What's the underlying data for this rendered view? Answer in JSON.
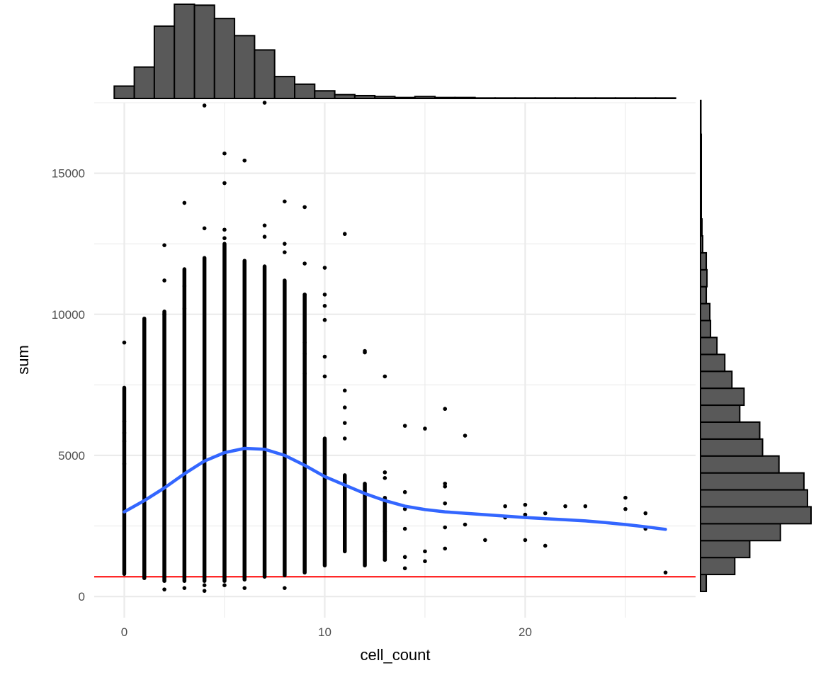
{
  "chart_data": {
    "type": "scatter",
    "title": "",
    "xlabel": "cell_count",
    "ylabel": "sum",
    "xlim": [
      -1.5,
      28.5
    ],
    "ylim": [
      -750,
      17500
    ],
    "x_ticks": [
      0,
      10,
      20
    ],
    "x_tick_labels": [
      "0",
      "10",
      "20"
    ],
    "x_minor_ticks": [
      5,
      15,
      25
    ],
    "y_ticks": [
      0,
      5000,
      10000,
      15000
    ],
    "y_tick_labels": [
      "0",
      "5000",
      "10000",
      "15000"
    ],
    "y_minor_ticks": [
      2500,
      7500,
      12500,
      17500
    ],
    "grid": true,
    "theme": "minimal",
    "colors": {
      "points": "#000000",
      "smooth_line": "#3366FF",
      "threshold_line": "#FF0000",
      "histogram_fill": "#595959",
      "histogram_stroke": "#000000",
      "grid": "#ebebeb"
    },
    "threshold": {
      "y": 700
    },
    "smooth": {
      "x": [
        0,
        1,
        2,
        3,
        4,
        5,
        6,
        7,
        8,
        9,
        10,
        11,
        12,
        13,
        14,
        15,
        16,
        17,
        18,
        19,
        20,
        21,
        22,
        23,
        24,
        25,
        26,
        27
      ],
      "y": [
        3000,
        3400,
        3850,
        4350,
        4800,
        5100,
        5250,
        5220,
        5000,
        4650,
        4250,
        3950,
        3650,
        3400,
        3200,
        3080,
        3000,
        2950,
        2900,
        2850,
        2800,
        2760,
        2720,
        2680,
        2620,
        2550,
        2470,
        2380
      ]
    },
    "strips": [
      {
        "x": 0,
        "min": 800,
        "max": 7400
      },
      {
        "x": 1,
        "min": 650,
        "max": 9850
      },
      {
        "x": 2,
        "min": 550,
        "max": 10100
      },
      {
        "x": 3,
        "min": 550,
        "max": 11600
      },
      {
        "x": 4,
        "min": 550,
        "max": 12000
      },
      {
        "x": 5,
        "min": 550,
        "max": 12500
      },
      {
        "x": 6,
        "min": 600,
        "max": 11900
      },
      {
        "x": 7,
        "min": 700,
        "max": 11700
      },
      {
        "x": 8,
        "min": 750,
        "max": 11200
      },
      {
        "x": 9,
        "min": 850,
        "max": 10700
      },
      {
        "x": 10,
        "min": 1100,
        "max": 5600
      },
      {
        "x": 11,
        "min": 1600,
        "max": 4300
      },
      {
        "x": 12,
        "min": 1100,
        "max": 4000
      },
      {
        "x": 13,
        "min": 1300,
        "max": 3500
      }
    ],
    "points": [
      [
        0,
        9000
      ],
      [
        0,
        6200
      ],
      [
        0,
        5800
      ],
      [
        0,
        5500
      ],
      [
        0,
        4700
      ],
      [
        1,
        8600
      ],
      [
        1,
        9700
      ],
      [
        2,
        12450
      ],
      [
        2,
        11200
      ],
      [
        2,
        10000
      ],
      [
        2,
        250
      ],
      [
        3,
        13950
      ],
      [
        3,
        11000
      ],
      [
        3,
        10200
      ],
      [
        3,
        300
      ],
      [
        4,
        17400
      ],
      [
        4,
        13050
      ],
      [
        4,
        200
      ],
      [
        4,
        400
      ],
      [
        5,
        15700
      ],
      [
        5,
        14650
      ],
      [
        5,
        13000
      ],
      [
        5,
        12700
      ],
      [
        5,
        400
      ],
      [
        6,
        15450
      ],
      [
        6,
        300
      ],
      [
        7,
        17500
      ],
      [
        7,
        13150
      ],
      [
        7,
        12750
      ],
      [
        8,
        14000
      ],
      [
        8,
        12500
      ],
      [
        8,
        12200
      ],
      [
        8,
        300
      ],
      [
        9,
        13800
      ],
      [
        9,
        11800
      ],
      [
        9,
        10700
      ],
      [
        9,
        9000
      ],
      [
        9,
        8600
      ],
      [
        9,
        7900
      ],
      [
        10,
        11650
      ],
      [
        10,
        10700
      ],
      [
        10,
        10300
      ],
      [
        10,
        9800
      ],
      [
        10,
        8500
      ],
      [
        10,
        7800
      ],
      [
        11,
        12850
      ],
      [
        11,
        7300
      ],
      [
        11,
        6700
      ],
      [
        11,
        6150
      ],
      [
        11,
        5600
      ],
      [
        12,
        8700
      ],
      [
        12,
        8650
      ],
      [
        13,
        7800
      ],
      [
        13,
        4400
      ],
      [
        13,
        4200
      ],
      [
        13,
        2300
      ],
      [
        13,
        1300
      ],
      [
        14,
        6050
      ],
      [
        14,
        3700
      ],
      [
        14,
        3100
      ],
      [
        14,
        2400
      ],
      [
        14,
        1400
      ],
      [
        14,
        1000
      ],
      [
        15,
        5950
      ],
      [
        15,
        1600
      ],
      [
        15,
        1250
      ],
      [
        16,
        6650
      ],
      [
        16,
        4000
      ],
      [
        16,
        3900
      ],
      [
        16,
        3300
      ],
      [
        16,
        2450
      ],
      [
        16,
        1700
      ],
      [
        17,
        5700
      ],
      [
        17,
        2550
      ],
      [
        18,
        2000
      ],
      [
        19,
        3200
      ],
      [
        19,
        2800
      ],
      [
        20,
        3250
      ],
      [
        20,
        2900
      ],
      [
        20,
        2000
      ],
      [
        21,
        2950
      ],
      [
        21,
        1800
      ],
      [
        22,
        3200
      ],
      [
        23,
        3200
      ],
      [
        25,
        3500
      ],
      [
        25,
        3100
      ],
      [
        26,
        2950
      ],
      [
        26,
        2400
      ],
      [
        27,
        850
      ]
    ],
    "top_histogram": {
      "bin_width": 1,
      "bin_starts": [
        -0.5,
        0.5,
        1.5,
        2.5,
        3.5,
        4.5,
        5.5,
        6.5,
        7.5,
        8.5,
        9.5,
        10.5,
        11.5,
        12.5,
        13.5,
        14.5,
        15.5,
        16.5,
        17.5,
        18.5,
        19.5,
        20.5,
        21.5,
        22.5,
        23.5,
        24.5,
        25.5,
        26.5
      ],
      "counts": [
        13,
        33,
        76,
        99,
        98,
        84,
        66,
        51,
        23,
        15,
        8,
        4,
        3,
        2,
        1,
        2,
        1,
        1,
        0.5,
        0.5,
        0.5,
        0.5,
        0.5,
        0.5,
        0.5,
        0.5,
        0.5,
        0.5
      ]
    },
    "right_histogram": {
      "bin_width": 600,
      "bin_starts": [
        180,
        780,
        1380,
        1980,
        2580,
        3180,
        3780,
        4380,
        4980,
        5580,
        6180,
        6780,
        7380,
        7980,
        8580,
        9180,
        9780,
        10380,
        10980,
        11580,
        12180,
        12780,
        13380,
        13980,
        14580,
        15180,
        15780,
        16380,
        16980
      ],
      "counts": [
        8,
        48,
        69,
        112,
        155,
        150,
        145,
        110,
        87,
        83,
        55,
        61,
        44,
        34,
        23,
        14,
        13,
        8,
        9,
        8,
        3,
        2,
        1,
        1,
        1,
        1,
        1,
        0.5,
        0.5
      ]
    }
  }
}
